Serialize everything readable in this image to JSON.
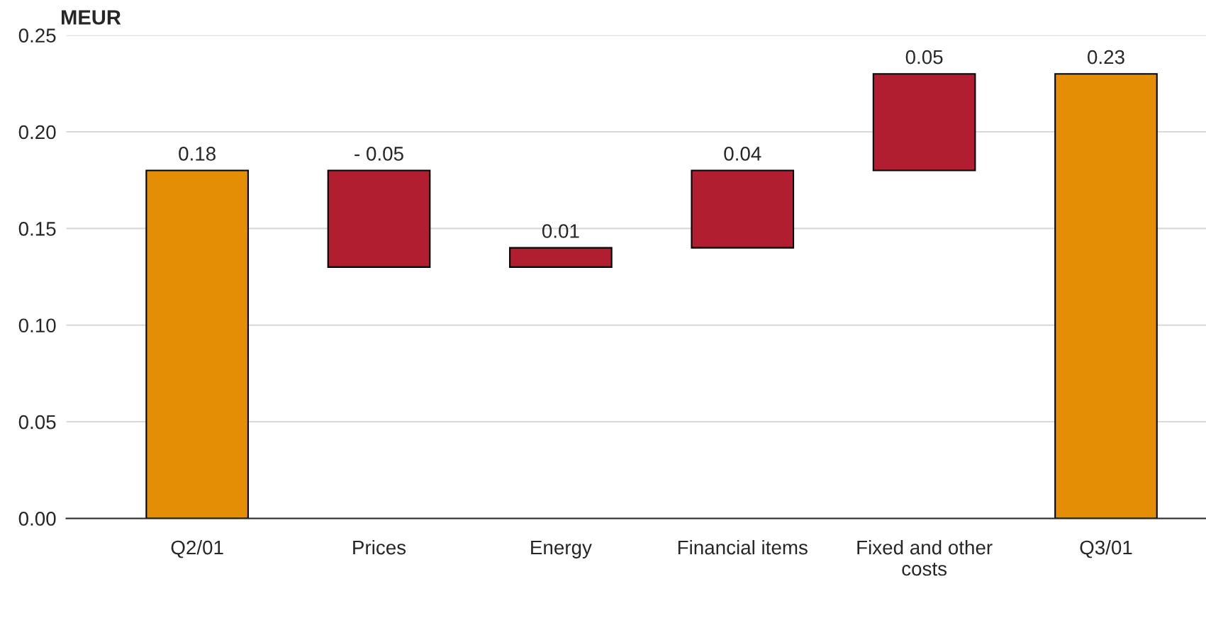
{
  "chart_data": {
    "type": "bar",
    "ylabel": "MEUR",
    "categories": [
      "Q2/01",
      "Prices",
      "Energy",
      "Financial items",
      "Fixed and other\ncosts",
      "Q3/01"
    ],
    "values": [
      0.18,
      -0.05,
      0.01,
      0.04,
      0.05,
      0.23
    ],
    "base": [
      0,
      0.18,
      0.13,
      0.14,
      0.18,
      0
    ],
    "colors": [
      "#e38e05",
      "#b01e2f",
      "#b01e2f",
      "#b01e2f",
      "#b01e2f",
      "#e38e05"
    ],
    "value_labels": [
      "0.18",
      "- 0.05",
      "0.01",
      "0.04",
      "0.05",
      "0.23"
    ],
    "ylim": [
      0,
      0.25
    ],
    "yticks": [
      {
        "value": 0,
        "label": "0.00"
      },
      {
        "value": 0.05,
        "label": "0.05"
      },
      {
        "value": 0.1,
        "label": "0.10"
      },
      {
        "value": 0.15,
        "label": "0.15"
      },
      {
        "value": 0.2,
        "label": "0.20"
      },
      {
        "value": 0.25,
        "label": "0.25"
      }
    ],
    "grid": "y",
    "legend": false
  }
}
